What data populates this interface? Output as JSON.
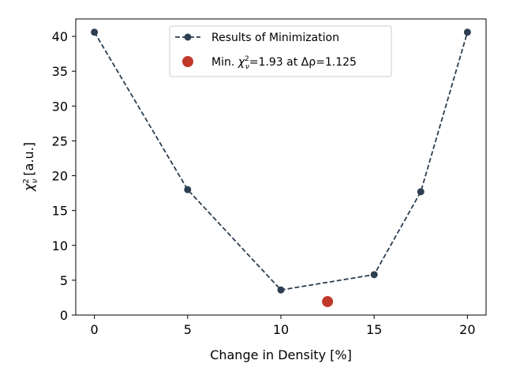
{
  "chart_data": {
    "type": "line",
    "xlabel": "Change in Density [%]",
    "ylabel_symbol": "χ",
    "ylabel_sup": "2",
    "ylabel_sub": "ν",
    "ylabel_unit": "[a.u.]",
    "xlim": [
      -1,
      21
    ],
    "ylim": [
      0,
      42.5
    ],
    "x_ticks": [
      0,
      5,
      10,
      15,
      20
    ],
    "y_ticks": [
      0,
      5,
      10,
      15,
      20,
      25,
      30,
      35,
      40
    ],
    "grid": false,
    "legend_position": "top-center",
    "series": [
      {
        "name": "Results of Minimization",
        "style": "dashed-line-with-circles",
        "color": "#2c3e50",
        "x": [
          0,
          5,
          10,
          15,
          17.5,
          20
        ],
        "y": [
          40.6,
          18.0,
          3.6,
          5.8,
          17.7,
          40.6
        ]
      }
    ],
    "minimum": {
      "legend_prefix": "Min. ",
      "legend_symbol": "χ",
      "legend_sup": "2",
      "legend_sub": "ν",
      "legend_value_text": "=1.93 at Δρ=1.125",
      "x": 12.5,
      "y": 1.93,
      "color": "#c0392b"
    }
  }
}
